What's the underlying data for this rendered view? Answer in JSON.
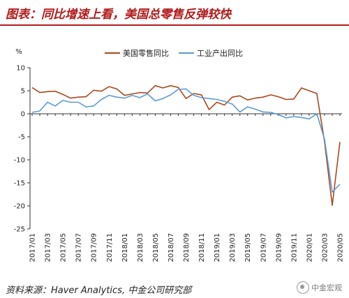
{
  "header": {
    "title": "图表：同比增速上看，美国总零售反弹较快"
  },
  "footer": {
    "source": "资料来源：Haver Analytics,  中金公司研究部",
    "watermark": "中金宏观"
  },
  "chart_data": {
    "type": "line",
    "ylabel": "%",
    "ylim": [
      -25,
      10
    ],
    "yticks": [
      10,
      5,
      0,
      -5,
      -10,
      -15,
      -20,
      -25
    ],
    "grid": false,
    "legend_position": "top-center",
    "x": [
      "2017/01",
      "2017/02",
      "2017/03",
      "2017/04",
      "2017/05",
      "2017/06",
      "2017/07",
      "2017/08",
      "2017/09",
      "2017/10",
      "2017/11",
      "2017/12",
      "2018/01",
      "2018/02",
      "2018/03",
      "2018/04",
      "2018/05",
      "2018/06",
      "2018/07",
      "2018/08",
      "2018/09",
      "2018/10",
      "2018/11",
      "2018/12",
      "2019/01",
      "2019/02",
      "2019/03",
      "2019/04",
      "2019/05",
      "2019/06",
      "2019/07",
      "2019/08",
      "2019/09",
      "2019/10",
      "2019/11",
      "2019/12",
      "2020/01",
      "2020/02",
      "2020/03",
      "2020/04",
      "2020/05"
    ],
    "xtick_labels": [
      "2017/01",
      "2017/03",
      "2017/05",
      "2017/07",
      "2017/09",
      "2017/11",
      "2018/01",
      "2018/03",
      "2018/05",
      "2018/07",
      "2018/09",
      "2018/11",
      "2019/01",
      "2019/03",
      "2019/05",
      "2019/07",
      "2019/09",
      "2019/11",
      "2020/01",
      "2020/03",
      "2020/05"
    ],
    "series": [
      {
        "name": "美国零售同比",
        "color": "#a9481c",
        "values": [
          5.7,
          4.6,
          4.8,
          4.9,
          4.2,
          3.4,
          3.6,
          3.7,
          5.1,
          4.9,
          5.9,
          5.4,
          4.0,
          4.3,
          4.6,
          4.5,
          6.1,
          5.6,
          6.1,
          5.7,
          3.3,
          4.4,
          4.1,
          0.9,
          2.5,
          1.9,
          3.6,
          3.9,
          3.0,
          3.4,
          3.6,
          4.1,
          3.7,
          3.1,
          3.2,
          5.6,
          5.0,
          4.4,
          -6.0,
          -19.9,
          -6.1
        ]
      },
      {
        "name": "工业产出同比",
        "color": "#5b9bd5",
        "values": [
          0.3,
          0.6,
          2.5,
          1.7,
          2.9,
          2.5,
          2.5,
          1.5,
          1.7,
          3.1,
          4.0,
          3.6,
          3.4,
          4.0,
          3.5,
          4.3,
          2.8,
          3.3,
          4.1,
          5.3,
          5.4,
          4.0,
          3.5,
          3.3,
          3.1,
          2.7,
          2.1,
          0.4,
          1.5,
          1.0,
          0.4,
          0.3,
          -0.2,
          -0.9,
          -0.6,
          -0.8,
          -1.1,
          0.0,
          -5.5,
          -17.0,
          -15.3
        ]
      }
    ]
  }
}
